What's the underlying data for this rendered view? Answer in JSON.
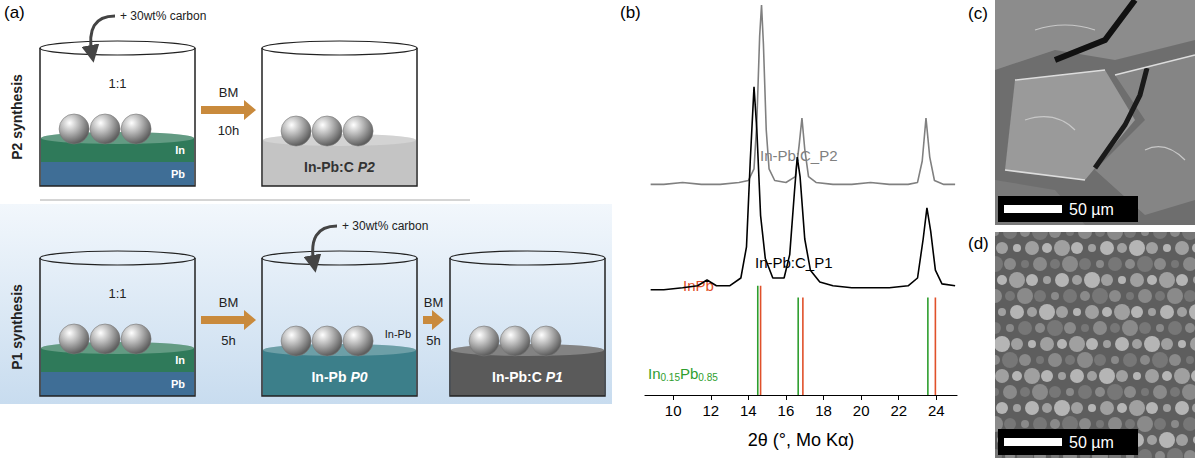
{
  "panel_a": {
    "label": "(a)",
    "rows": [
      {
        "title": "P2 synthesis",
        "beakers": [
          {
            "added": "+ 30wt% carbon",
            "ratio": "1:1",
            "layers": [
              {
                "name": "In",
                "color": "#2f7a5a"
              },
              {
                "name": "Pb",
                "color": "#3f6e96"
              }
            ]
          },
          {
            "product": "In-Pb:C P2",
            "color": "#c4c4c4"
          }
        ],
        "arrows": [
          {
            "label": "BM",
            "time": "10h"
          }
        ]
      },
      {
        "title": "P1 synthesis",
        "beakers": [
          {
            "ratio": "1:1",
            "layers": [
              {
                "name": "In",
                "color": "#2f7a5a"
              },
              {
                "name": "Pb",
                "color": "#3f6e96"
              }
            ]
          },
          {
            "added": "+ 30wt% carbon",
            "product": "In-Pb P0",
            "color": "#3c7f8a",
            "layer_label": "In-Pb"
          },
          {
            "product": "In-Pb:C P1",
            "color": "#5a5a5a"
          }
        ],
        "arrows": [
          {
            "label": "BM",
            "time": "5h"
          },
          {
            "label": "BM",
            "time": "5h"
          }
        ]
      }
    ]
  },
  "chart_data": {
    "type": "line",
    "title": "(b)",
    "x_label": "2θ (°, Mo Kα)",
    "xlim": [
      8.5,
      25.1
    ],
    "xticks": [
      10,
      12,
      14,
      16,
      18,
      20,
      22,
      24
    ],
    "ylim": [
      0,
      100
    ],
    "tick_labels": "x",
    "grid": false,
    "series": [
      {
        "name": "In-Pb:C_P2",
        "color": "#808080",
        "x": [
          8.8,
          9.5,
          10.5,
          11.5,
          12.5,
          13.5,
          14.0,
          14.3,
          14.45,
          14.6,
          14.7,
          14.8,
          14.95,
          15.1,
          15.4,
          16.0,
          16.5,
          16.7,
          16.85,
          17.0,
          17.2,
          17.6,
          18.5,
          19.5,
          20.5,
          21.5,
          22.5,
          23.0,
          23.25,
          23.45,
          23.65,
          23.9,
          24.4,
          25.0
        ],
        "values": [
          54,
          54,
          54.5,
          54,
          54,
          54.5,
          55,
          58,
          70,
          92,
          100,
          90,
          68,
          58,
          55,
          54.5,
          56,
          64,
          71,
          63,
          56,
          54.5,
          54,
          54,
          54.5,
          54,
          54,
          54.5,
          60,
          71,
          61,
          55,
          54,
          54
        ]
      },
      {
        "name": "In-Pb:C_P1",
        "color": "#000000",
        "x": [
          8.8,
          9.5,
          10.5,
          11.3,
          11.8,
          12.3,
          13.0,
          13.6,
          13.9,
          14.1,
          14.3,
          14.45,
          14.65,
          14.9,
          15.3,
          15.9,
          16.2,
          16.45,
          16.6,
          16.75,
          17.0,
          17.3,
          17.8,
          18.5,
          19.5,
          20.5,
          21.5,
          22.5,
          23.0,
          23.3,
          23.5,
          23.7,
          23.95,
          24.3,
          25.0
        ],
        "values": [
          27,
          27,
          27.5,
          28,
          29.5,
          28,
          28,
          30,
          38,
          60,
          79,
          68,
          46,
          35,
          30,
          30,
          36,
          52,
          61,
          56,
          40,
          32,
          29,
          28,
          27.5,
          27.5,
          27.5,
          28,
          30,
          40,
          48,
          42,
          32,
          28.5,
          28
        ]
      }
    ],
    "references": [
      {
        "name": "In0.15Pb0.85",
        "color": "#2e9e2e",
        "positions": [
          14.5,
          16.65,
          23.55
        ],
        "heights": [
          28,
          25,
          25
        ]
      },
      {
        "name": "InPb",
        "color": "#e0502a",
        "positions": [
          14.65,
          16.9,
          23.95
        ],
        "heights": [
          28,
          25,
          25
        ]
      }
    ]
  },
  "panel_c": {
    "label": "(c)",
    "scale_bar": "50 µm"
  },
  "panel_d": {
    "label": "(d)",
    "scale_bar": "50 µm"
  }
}
